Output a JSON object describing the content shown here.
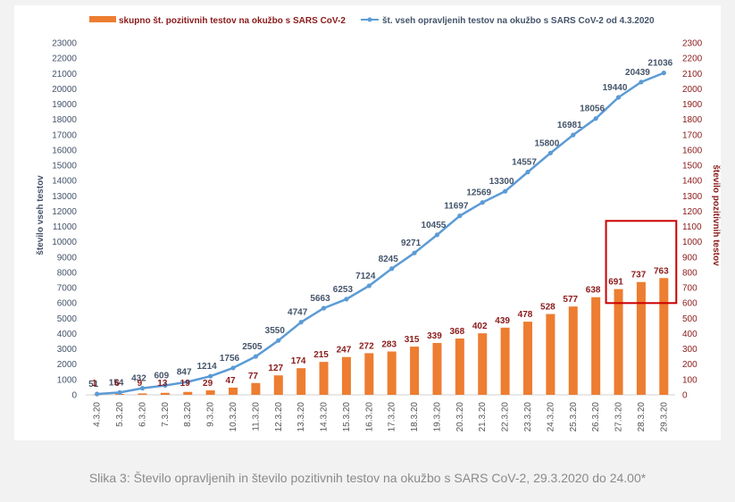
{
  "chart_data": {
    "type": "bar+line",
    "categories": [
      "4.3.20",
      "5.3.20",
      "6.3.20",
      "7.3.20",
      "8.3.20",
      "9.3.20",
      "10.3.20",
      "11.3.20",
      "12.3.20",
      "13.3.20",
      "14.3.20",
      "15.3.20",
      "16.3.20",
      "17.3.20",
      "18.3.20",
      "19.3.20",
      "20.3.20",
      "21.3.20",
      "22.3.20",
      "23.3.20",
      "24.3.20",
      "25.3.20",
      "26.3.20",
      "27.3.20",
      "28.3.20",
      "29.3.20"
    ],
    "series": [
      {
        "name": "skupno št. pozitivnih testov na okužbo s SARS CoV-2",
        "type": "bar",
        "axis": "right",
        "color": "#ed7d31",
        "label_color": "#8b1a1a",
        "values": [
          1,
          6,
          9,
          13,
          19,
          29,
          47,
          77,
          127,
          174,
          215,
          247,
          272,
          283,
          315,
          339,
          368,
          402,
          439,
          478,
          528,
          577,
          638,
          691,
          737,
          763
        ]
      },
      {
        "name": "št. vseh opravljenih testov na okužbo s SARS CoV-2 od 4.3.2020",
        "type": "line",
        "axis": "left",
        "color": "#5b9bd5",
        "label_color": "#44546a",
        "values": [
          51,
          154,
          432,
          609,
          847,
          1214,
          1756,
          2505,
          3550,
          4747,
          5663,
          6253,
          7124,
          8245,
          9271,
          10455,
          11697,
          12569,
          13300,
          14557,
          15800,
          16981,
          18056,
          19440,
          20439,
          21036
        ]
      }
    ],
    "left_axis": {
      "label": "število vseh testov",
      "ylim": [
        0,
        23000
      ],
      "step": 1000,
      "color": "#44546a"
    },
    "right_axis": {
      "label": "število pozitivnih testov",
      "ylim": [
        0,
        2300
      ],
      "step": 100,
      "color": "#8b1a1a"
    },
    "highlight": {
      "categories": [
        "27.3.20",
        "28.3.20",
        "29.3.20"
      ],
      "color": "#cc0000"
    },
    "legend": "top"
  },
  "caption": "Slika 3: Število opravljenih in število pozitivnih testov na okužbo s SARS CoV-2, 29.3.2020 do 24.00*"
}
